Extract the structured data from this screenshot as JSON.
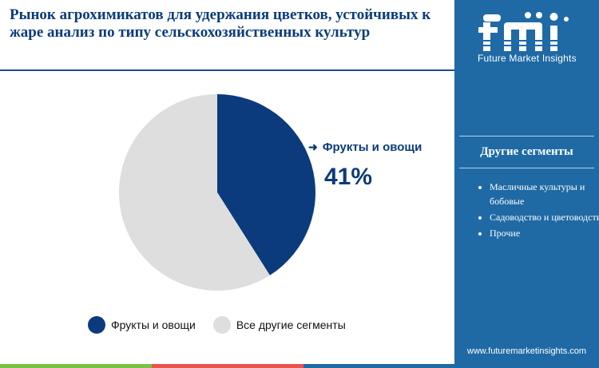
{
  "title": "Рынок агрохимикатов для удержания цветков, устойчивых к жаре анализ по типу сельскохозяйственных культур",
  "brand": {
    "logo_text": "Future Market Insights",
    "url": "www.futuremarketinsights.com"
  },
  "sidebar": {
    "heading": "Другие сегменты",
    "items": [
      "Масличные культуры и бобовые",
      "Садоводство и цветоводство",
      "Прочие"
    ]
  },
  "colors": {
    "accent": "#0b3b7c",
    "other": "#dedede",
    "sidebar": "#1f6aa5"
  },
  "chart_data": {
    "type": "pie",
    "title": "",
    "slices": [
      {
        "name": "Фрукты и овощи",
        "value": 41,
        "color": "#0b3b7c"
      },
      {
        "name": "Все другие сегменты",
        "value": 59,
        "color": "#dedede"
      }
    ],
    "callout": {
      "label": "Фрукты и овощи",
      "value": "41%"
    },
    "legend_placement": "bottom"
  }
}
